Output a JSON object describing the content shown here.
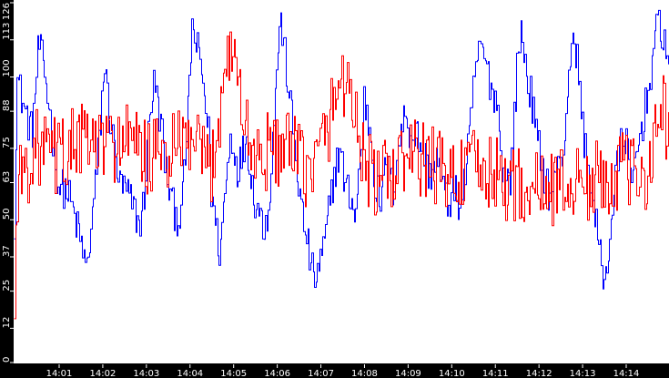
{
  "chart_data": {
    "type": "line",
    "title": "",
    "xlabel": "",
    "ylabel": "",
    "ylim": [
      0,
      126
    ],
    "grid": false,
    "legend": null,
    "background": "#ffffff",
    "axis_background": "#000000",
    "y_ticks": [
      0,
      12,
      25,
      37,
      50,
      63,
      75,
      88,
      100,
      113,
      126
    ],
    "x_ticks": [
      "14:01",
      "14:02",
      "14:03",
      "14:04",
      "14:05",
      "14:06",
      "14:07",
      "14:08",
      "14:09",
      "14:10",
      "14:11",
      "14:12",
      "14:13",
      "14:14"
    ],
    "x_range_minutes": [
      14.0,
      14.0
    ],
    "series": [
      {
        "name": "blue",
        "color": "#0000ff",
        "noise": 7,
        "points": [
          [
            0.0,
            50
          ],
          [
            0.05,
            100
          ],
          [
            0.2,
            90
          ],
          [
            0.4,
            80
          ],
          [
            0.55,
            112
          ],
          [
            0.7,
            100
          ],
          [
            0.9,
            75
          ],
          [
            1.0,
            62
          ],
          [
            1.2,
            60
          ],
          [
            1.35,
            52
          ],
          [
            1.55,
            40
          ],
          [
            1.65,
            32
          ],
          [
            1.8,
            55
          ],
          [
            1.95,
            80
          ],
          [
            2.05,
            105
          ],
          [
            2.15,
            90
          ],
          [
            2.25,
            78
          ],
          [
            2.4,
            62
          ],
          [
            2.55,
            60
          ],
          [
            2.7,
            55
          ],
          [
            2.85,
            48
          ],
          [
            2.95,
            55
          ],
          [
            3.1,
            90
          ],
          [
            3.2,
            98
          ],
          [
            3.4,
            78
          ],
          [
            3.45,
            68
          ],
          [
            3.6,
            55
          ],
          [
            3.75,
            50
          ],
          [
            3.85,
            58
          ],
          [
            4.0,
            95
          ],
          [
            4.05,
            118
          ],
          [
            4.2,
            108
          ],
          [
            4.3,
            100
          ],
          [
            4.45,
            78
          ],
          [
            4.5,
            60
          ],
          [
            4.6,
            48
          ],
          [
            4.7,
            38
          ],
          [
            4.8,
            58
          ],
          [
            4.95,
            80
          ],
          [
            5.1,
            68
          ],
          [
            5.2,
            72
          ],
          [
            5.3,
            80
          ],
          [
            5.45,
            60
          ],
          [
            5.55,
            55
          ],
          [
            5.7,
            48
          ],
          [
            5.8,
            52
          ],
          [
            5.9,
            75
          ],
          [
            6.0,
            105
          ],
          [
            6.1,
            120
          ],
          [
            6.2,
            105
          ],
          [
            6.35,
            85
          ],
          [
            6.45,
            70
          ],
          [
            6.55,
            55
          ],
          [
            6.7,
            42
          ],
          [
            6.85,
            28
          ],
          [
            7.0,
            35
          ],
          [
            7.1,
            42
          ],
          [
            7.3,
            65
          ],
          [
            7.45,
            75
          ],
          [
            7.55,
            62
          ],
          [
            7.7,
            58
          ],
          [
            7.8,
            50
          ],
          [
            7.95,
            80
          ],
          [
            8.0,
            92
          ],
          [
            8.15,
            80
          ],
          [
            8.25,
            62
          ],
          [
            8.4,
            55
          ],
          [
            8.5,
            72
          ],
          [
            8.65,
            60
          ],
          [
            8.8,
            78
          ],
          [
            8.95,
            88
          ],
          [
            9.05,
            80
          ],
          [
            9.2,
            80
          ],
          [
            9.35,
            75
          ],
          [
            9.5,
            65
          ],
          [
            9.65,
            72
          ],
          [
            9.75,
            65
          ],
          [
            9.9,
            55
          ],
          [
            10.05,
            60
          ],
          [
            10.2,
            55
          ],
          [
            10.35,
            70
          ],
          [
            10.45,
            85
          ],
          [
            10.55,
            105
          ],
          [
            10.7,
            110
          ],
          [
            10.85,
            100
          ],
          [
            10.95,
            95
          ],
          [
            11.05,
            90
          ],
          [
            11.2,
            62
          ],
          [
            11.35,
            65
          ],
          [
            11.5,
            102
          ],
          [
            11.6,
            118
          ],
          [
            11.7,
            102
          ],
          [
            11.8,
            95
          ],
          [
            11.95,
            78
          ],
          [
            12.1,
            68
          ],
          [
            12.25,
            58
          ],
          [
            12.4,
            65
          ],
          [
            12.5,
            70
          ],
          [
            12.6,
            80
          ],
          [
            12.7,
            108
          ],
          [
            12.85,
            110
          ],
          [
            12.95,
            92
          ],
          [
            13.05,
            75
          ],
          [
            13.2,
            62
          ],
          [
            13.3,
            48
          ],
          [
            13.4,
            38
          ],
          [
            13.5,
            28
          ],
          [
            13.6,
            40
          ],
          [
            13.75,
            65
          ],
          [
            13.9,
            78
          ],
          [
            14.0,
            80
          ],
          [
            14.1,
            60
          ],
          [
            14.25,
            75
          ],
          [
            14.35,
            82
          ],
          [
            14.5,
            95
          ],
          [
            14.65,
            112
          ],
          [
            14.75,
            120
          ],
          [
            14.9,
            110
          ],
          [
            15.0,
            105
          ]
        ]
      },
      {
        "name": "red",
        "color": "#ff0000",
        "noise": 14,
        "points": [
          [
            0.0,
            15
          ],
          [
            0.05,
            62
          ],
          [
            0.5,
            75
          ],
          [
            1.0,
            72
          ],
          [
            1.5,
            78
          ],
          [
            2.0,
            75
          ],
          [
            2.5,
            78
          ],
          [
            3.0,
            72
          ],
          [
            3.5,
            72
          ],
          [
            4.0,
            78
          ],
          [
            4.3,
            70
          ],
          [
            4.5,
            68
          ],
          [
            4.7,
            90
          ],
          [
            4.85,
            108
          ],
          [
            5.0,
            110
          ],
          [
            5.1,
            100
          ],
          [
            5.3,
            80
          ],
          [
            5.5,
            72
          ],
          [
            6.0,
            75
          ],
          [
            6.5,
            72
          ],
          [
            6.8,
            65
          ],
          [
            7.0,
            75
          ],
          [
            7.3,
            90
          ],
          [
            7.5,
            100
          ],
          [
            7.7,
            95
          ],
          [
            7.85,
            80
          ],
          [
            8.0,
            70
          ],
          [
            8.3,
            62
          ],
          [
            8.5,
            65
          ],
          [
            9.0,
            72
          ],
          [
            9.5,
            70
          ],
          [
            10.0,
            66
          ],
          [
            10.5,
            68
          ],
          [
            11.0,
            65
          ],
          [
            11.5,
            62
          ],
          [
            12.0,
            60
          ],
          [
            12.5,
            63
          ],
          [
            13.0,
            62
          ],
          [
            13.5,
            65
          ],
          [
            14.0,
            68
          ],
          [
            14.3,
            62
          ],
          [
            14.5,
            70
          ],
          [
            14.7,
            85
          ],
          [
            14.85,
            88
          ],
          [
            15.0,
            80
          ]
        ]
      }
    ],
    "x_domain": [
      0,
      15
    ],
    "x_tick_positions": [
      1,
      2,
      3,
      4,
      5,
      6,
      7,
      8,
      9,
      10,
      11,
      12,
      13,
      14
    ]
  }
}
